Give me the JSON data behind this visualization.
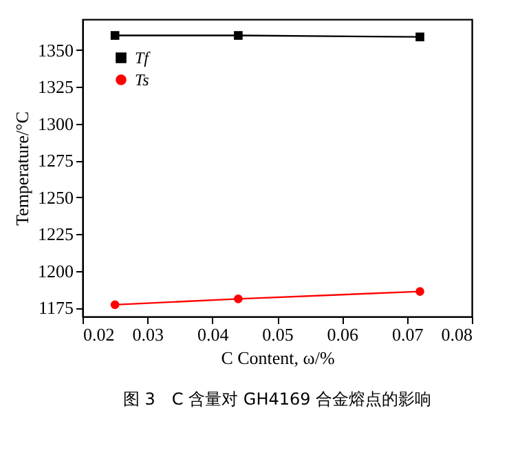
{
  "chart_data": {
    "type": "line",
    "xlabel": "C Content, ω/%",
    "ylabel": "Temperature/°C",
    "x": [
      0.025,
      0.044,
      0.072
    ],
    "series": [
      {
        "name": "Tf",
        "color": "#000000",
        "marker": "square",
        "values": [
          1360,
          1360,
          1359
        ]
      },
      {
        "name": "Ts",
        "color": "#ff0000",
        "marker": "circle",
        "values": [
          1177,
          1181,
          1186
        ]
      }
    ],
    "xlim": [
      0.02,
      0.08
    ],
    "xticks": [
      0.02,
      0.03,
      0.04,
      0.05,
      0.06,
      0.07,
      0.08
    ],
    "ylim": [
      1169,
      1371
    ],
    "yticks": [
      1175,
      1200,
      1225,
      1250,
      1275,
      1300,
      1325,
      1350
    ],
    "grid": false,
    "legend": "top left",
    "annotations": [
      "图 3　C 含量对 GH4169 合金熔点的影响"
    ]
  }
}
